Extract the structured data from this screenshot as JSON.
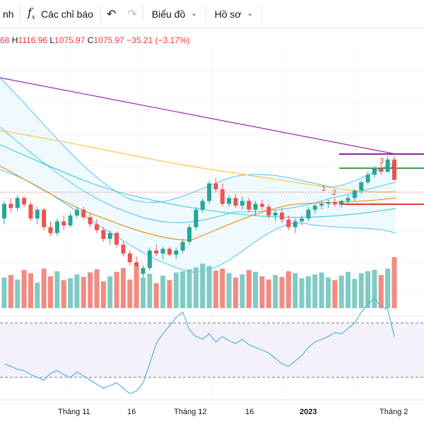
{
  "toolbar": {
    "cut_label": "nh",
    "indicators_label": "Các chỉ báo",
    "chart_label": "Biểu đồ",
    "profile_label": "Hồ sơ"
  },
  "ohlc": {
    "open_partial": "68",
    "high_prefix": "H",
    "high": "1116.96",
    "low_prefix": "L",
    "low": "1075.97",
    "close_prefix": "C",
    "close": "1075.97",
    "change": "−35.21 (−3.17%)"
  },
  "annotations": [
    "1",
    "2",
    "3",
    "4"
  ],
  "x_axis": [
    "Tháng 11",
    "16",
    "Tháng 12",
    "16",
    "2023",
    "Tháng 2"
  ],
  "colors": {
    "up": "#26a69a",
    "down": "#ef5350",
    "bollinger": "#4fc3f7",
    "ma_orange": "#f57c00",
    "ma_yellow": "#f9c74f",
    "ma_purple": "#9c27b0",
    "support_red": "#e53935",
    "resist_green": "#43a047",
    "resist_purple": "#8e24aa"
  },
  "chart_data": {
    "type": "candlestick",
    "candles": [
      [
        1010,
        1040,
        1000,
        1035
      ],
      [
        1035,
        1045,
        1020,
        1028
      ],
      [
        1028,
        1050,
        1022,
        1045
      ],
      [
        1045,
        1048,
        1030,
        1034
      ],
      [
        1034,
        1038,
        1005,
        1010
      ],
      [
        1010,
        1030,
        1000,
        1025
      ],
      [
        1025,
        1028,
        990,
        995
      ],
      [
        995,
        1005,
        980,
        985
      ],
      [
        985,
        1010,
        980,
        1005
      ],
      [
        1005,
        1015,
        990,
        998
      ],
      [
        998,
        1020,
        995,
        1015
      ],
      [
        1015,
        1030,
        1010,
        1025
      ],
      [
        1025,
        1030,
        1008,
        1012
      ],
      [
        1012,
        1018,
        995,
        1000
      ],
      [
        1000,
        1008,
        985,
        990
      ],
      [
        990,
        995,
        970,
        975
      ],
      [
        975,
        990,
        965,
        985
      ],
      [
        985,
        988,
        960,
        965
      ],
      [
        965,
        970,
        945,
        950
      ],
      [
        950,
        955,
        930,
        935
      ],
      [
        935,
        945,
        910,
        915
      ],
      [
        915,
        930,
        905,
        925
      ],
      [
        925,
        960,
        920,
        955
      ],
      [
        955,
        965,
        945,
        950
      ],
      [
        950,
        962,
        940,
        958
      ],
      [
        958,
        962,
        945,
        948
      ],
      [
        948,
        960,
        940,
        955
      ],
      [
        955,
        975,
        950,
        970
      ],
      [
        970,
        1000,
        965,
        995
      ],
      [
        995,
        1030,
        990,
        1025
      ],
      [
        1025,
        1045,
        1020,
        1040
      ],
      [
        1040,
        1075,
        1035,
        1070
      ],
      [
        1070,
        1080,
        1055,
        1060
      ],
      [
        1060,
        1070,
        1030,
        1035
      ],
      [
        1035,
        1050,
        1030,
        1045
      ],
      [
        1045,
        1052,
        1028,
        1032
      ],
      [
        1032,
        1048,
        1025,
        1040
      ],
      [
        1040,
        1045,
        1020,
        1025
      ],
      [
        1025,
        1040,
        1015,
        1035
      ],
      [
        1035,
        1042,
        1025,
        1030
      ],
      [
        1030,
        1035,
        1010,
        1015
      ],
      [
        1015,
        1025,
        1005,
        1020
      ],
      [
        1020,
        1028,
        1002,
        1008
      ],
      [
        1008,
        1015,
        990,
        995
      ],
      [
        995,
        1010,
        985,
        1005
      ],
      [
        1005,
        1015,
        998,
        1010
      ],
      [
        1010,
        1030,
        1005,
        1025
      ],
      [
        1025,
        1035,
        1018,
        1032
      ],
      [
        1032,
        1040,
        1025,
        1035
      ],
      [
        1035,
        1042,
        1028,
        1038
      ],
      [
        1038,
        1045,
        1030,
        1034
      ],
      [
        1034,
        1042,
        1028,
        1040
      ],
      [
        1040,
        1050,
        1035,
        1045
      ],
      [
        1045,
        1060,
        1040,
        1058
      ],
      [
        1058,
        1075,
        1052,
        1072
      ],
      [
        1072,
        1090,
        1068,
        1085
      ],
      [
        1085,
        1100,
        1080,
        1095
      ],
      [
        1095,
        1105,
        1085,
        1090
      ],
      [
        1090,
        1117,
        1088,
        1111
      ],
      [
        1111,
        1117,
        1076,
        1076
      ]
    ],
    "volume": [
      48,
      52,
      45,
      60,
      55,
      40,
      62,
      50,
      58,
      44,
      47,
      53,
      49,
      56,
      61,
      42,
      50,
      57,
      63,
      45,
      66,
      48,
      54,
      39,
      51,
      44,
      56,
      58,
      61,
      64,
      70,
      66,
      59,
      62,
      55,
      48,
      53,
      60,
      57,
      50,
      45,
      52,
      49,
      58,
      55,
      47,
      50,
      53,
      56,
      48,
      44,
      51,
      57,
      46,
      55,
      58,
      60,
      52,
      62,
      80
    ],
    "rsi": [
      40,
      38,
      36,
      35,
      32,
      30,
      28,
      33,
      35,
      32,
      30,
      34,
      31,
      28,
      25,
      22,
      24,
      26,
      22,
      18,
      20,
      26,
      40,
      55,
      62,
      68,
      74,
      78,
      65,
      60,
      58,
      62,
      56,
      60,
      57,
      55,
      58,
      54,
      52,
      50,
      48,
      44,
      40,
      38,
      42,
      46,
      52,
      56,
      58,
      60,
      63,
      62,
      66,
      70,
      78,
      84,
      88,
      82,
      80,
      60
    ],
    "rsi_bands": [
      70,
      30
    ]
  }
}
